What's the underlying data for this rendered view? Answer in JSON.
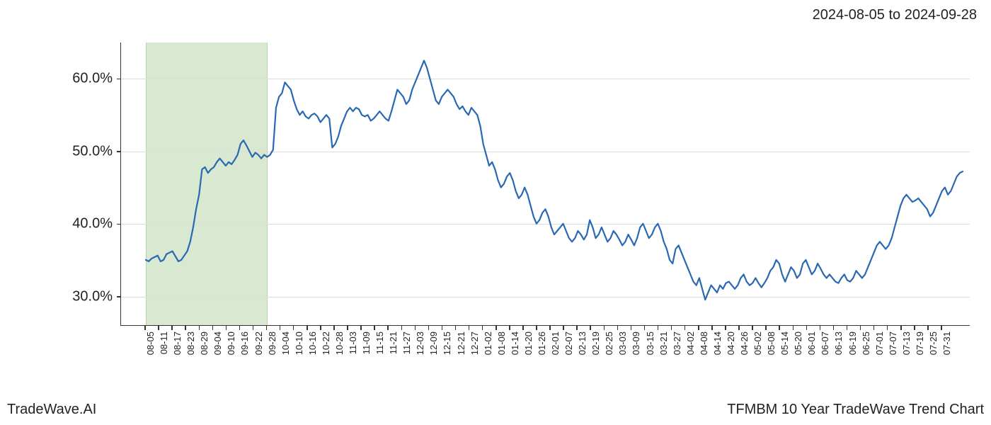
{
  "header": {
    "date_range": "2024-08-05 to 2024-09-28"
  },
  "footer": {
    "left": "TradeWave.AI",
    "right": "TFMBM 10 Year TradeWave Trend Chart"
  },
  "chart": {
    "type": "line",
    "background_color": "#ffffff",
    "grid_color": "#dddddd",
    "axis_color": "#333333",
    "line_color": "#2968b2",
    "line_width": 2.2,
    "highlight_band": {
      "fill_color": "#d9e8d0",
      "border_color": "#b8d4a8",
      "x_start": "08-05",
      "x_end": "09-28"
    },
    "ylim": [
      26,
      65
    ],
    "yticks": [
      30.0,
      40.0,
      50.0,
      60.0
    ],
    "ytick_labels": [
      "30.0%",
      "40.0%",
      "50.0%",
      "60.0%"
    ],
    "ytick_fontsize": 20,
    "xtick_labels": [
      "08-05",
      "08-11",
      "08-17",
      "08-23",
      "08-29",
      "09-04",
      "09-10",
      "09-16",
      "09-22",
      "09-28",
      "10-04",
      "10-10",
      "10-16",
      "10-22",
      "10-28",
      "11-03",
      "11-09",
      "11-15",
      "11-21",
      "11-27",
      "12-03",
      "12-09",
      "12-15",
      "12-21",
      "12-27",
      "01-02",
      "01-08",
      "01-14",
      "01-20",
      "01-26",
      "02-01",
      "02-07",
      "02-13",
      "02-19",
      "02-25",
      "03-03",
      "03-09",
      "03-15",
      "03-21",
      "03-27",
      "04-02",
      "04-08",
      "04-14",
      "04-20",
      "04-26",
      "05-02",
      "05-08",
      "05-14",
      "05-20",
      "06-01",
      "06-07",
      "06-13",
      "06-19",
      "06-25",
      "07-01",
      "07-07",
      "07-13",
      "07-19",
      "07-25",
      "07-31"
    ],
    "xtick_fontsize": 13,
    "series": [
      35.0,
      34.8,
      35.2,
      35.4,
      35.6,
      34.8,
      35.0,
      35.8,
      36.0,
      36.2,
      35.5,
      34.8,
      35.0,
      35.6,
      36.2,
      37.5,
      39.5,
      42.0,
      44.0,
      47.5,
      47.8,
      47.0,
      47.5,
      47.8,
      48.5,
      49.0,
      48.5,
      48.0,
      48.5,
      48.2,
      48.8,
      49.5,
      51.0,
      51.5,
      50.8,
      50.0,
      49.2,
      49.8,
      49.5,
      49.0,
      49.5,
      49.2,
      49.5,
      50.2,
      56.0,
      57.5,
      58.0,
      59.5,
      59.0,
      58.5,
      57.0,
      55.8,
      55.0,
      55.5,
      54.8,
      54.5,
      55.0,
      55.2,
      54.8,
      54.0,
      54.5,
      55.0,
      54.5,
      50.5,
      51.0,
      52.0,
      53.5,
      54.5,
      55.5,
      56.0,
      55.5,
      56.0,
      55.8,
      55.0,
      54.8,
      55.0,
      54.2,
      54.5,
      55.0,
      55.5,
      55.0,
      54.5,
      54.2,
      55.5,
      57.0,
      58.5,
      58.0,
      57.5,
      56.5,
      57.0,
      58.5,
      59.5,
      60.5,
      61.5,
      62.5,
      61.5,
      60.0,
      58.5,
      57.0,
      56.5,
      57.5,
      58.0,
      58.5,
      58.0,
      57.5,
      56.5,
      55.8,
      56.2,
      55.5,
      55.0,
      56.0,
      55.5,
      55.0,
      53.5,
      51.0,
      49.5,
      48.0,
      48.5,
      47.5,
      46.0,
      45.0,
      45.5,
      46.5,
      47.0,
      46.0,
      44.5,
      43.5,
      44.0,
      45.0,
      44.0,
      42.5,
      41.0,
      40.0,
      40.5,
      41.5,
      42.0,
      41.0,
      39.5,
      38.5,
      39.0,
      39.5,
      40.0,
      39.0,
      38.0,
      37.5,
      38.0,
      39.0,
      38.5,
      37.8,
      38.5,
      40.5,
      39.5,
      38.0,
      38.5,
      39.5,
      38.5,
      37.5,
      38.0,
      39.0,
      38.5,
      37.8,
      37.0,
      37.5,
      38.5,
      37.8,
      37.0,
      38.0,
      39.5,
      40.0,
      39.0,
      38.0,
      38.5,
      39.5,
      40.0,
      39.0,
      37.5,
      36.5,
      35.0,
      34.5,
      36.5,
      37.0,
      36.0,
      35.0,
      34.0,
      33.0,
      32.0,
      31.5,
      32.5,
      31.0,
      29.5,
      30.5,
      31.5,
      31.0,
      30.5,
      31.5,
      31.0,
      31.8,
      32.0,
      31.5,
      31.0,
      31.5,
      32.5,
      33.0,
      32.0,
      31.5,
      31.8,
      32.5,
      31.8,
      31.2,
      31.8,
      32.5,
      33.5,
      34.0,
      35.0,
      34.5,
      33.0,
      32.0,
      33.0,
      34.0,
      33.5,
      32.5,
      33.0,
      34.5,
      35.0,
      34.0,
      33.0,
      33.5,
      34.5,
      33.8,
      33.0,
      32.5,
      33.0,
      32.5,
      32.0,
      31.8,
      32.5,
      33.0,
      32.2,
      32.0,
      32.5,
      33.5,
      33.0,
      32.5,
      33.0,
      34.0,
      35.0,
      36.0,
      37.0,
      37.5,
      37.0,
      36.5,
      37.0,
      38.0,
      39.5,
      41.0,
      42.5,
      43.5,
      44.0,
      43.5,
      43.0,
      43.2,
      43.5,
      43.0,
      42.5,
      42.0,
      41.0,
      41.5,
      42.5,
      43.5,
      44.5,
      45.0,
      44.0,
      44.5,
      45.5,
      46.5,
      47.0,
      47.2
    ],
    "title_fontsize": 20
  }
}
